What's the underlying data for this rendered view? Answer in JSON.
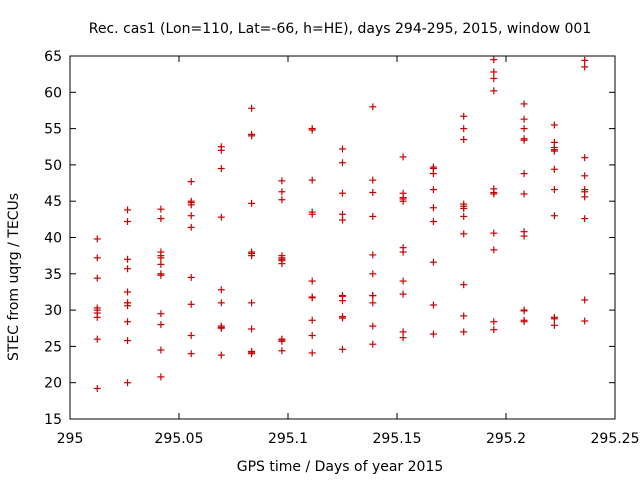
{
  "chart_data": {
    "type": "scatter",
    "title": "Rec. cas1 (Lon=110, Lat=-66, h=HE), days 294-295, 2015, window 001",
    "xlabel": "GPS time / Days of year 2015",
    "ylabel": "STEC from uqrg / TECUs",
    "xlim": [
      295,
      295.25
    ],
    "ylim": [
      15,
      65
    ],
    "xticks": [
      295,
      295.05,
      295.1,
      295.15,
      295.2,
      295.25
    ],
    "xtick_labels": [
      "295",
      "295.05",
      "295.1",
      "295.15",
      "295.2",
      "295.25"
    ],
    "yticks": [
      15,
      20,
      25,
      30,
      35,
      40,
      45,
      50,
      55,
      60,
      65
    ],
    "ytick_labels": [
      "15",
      "20",
      "25",
      "30",
      "35",
      "40",
      "45",
      "50",
      "55",
      "60",
      "65"
    ],
    "grid": false,
    "marker": "plus",
    "marker_color": "#cc0000",
    "series": [
      {
        "x": [
          295.0125,
          295.0125,
          295.0125,
          295.0125,
          295.0125,
          295.0125,
          295.0125,
          295.0125,
          295.0125,
          295.0264,
          295.0264,
          295.0264,
          295.0264,
          295.0264,
          295.0264,
          295.0264,
          295.0264,
          295.0264,
          295.0264,
          295.0264,
          295.0417,
          295.0417,
          295.0417,
          295.0417,
          295.0417,
          295.0417,
          295.0417,
          295.0417,
          295.0417,
          295.0417,
          295.0417,
          295.0417,
          295.0556,
          295.0556,
          295.0556,
          295.0556,
          295.0556,
          295.0556,
          295.0556,
          295.0556,
          295.0556,
          295.0556,
          295.0694,
          295.0694,
          295.0694,
          295.0694,
          295.0694,
          295.0694,
          295.0694,
          295.0694,
          295.0694,
          295.0694,
          295.0833,
          295.0833,
          295.0833,
          295.0833,
          295.0833,
          295.0833,
          295.0833,
          295.0833,
          295.0833,
          295.0833,
          295.0833,
          295.0833,
          295.0972,
          295.0972,
          295.0972,
          295.0972,
          295.0972,
          295.0972,
          295.0972,
          295.0972,
          295.0972,
          295.0972,
          295.0972,
          295.0972,
          295.1111,
          295.1111,
          295.1111,
          295.1111,
          295.1111,
          295.1111,
          295.1111,
          295.1111,
          295.1111,
          295.1111,
          295.1111,
          295.125,
          295.125,
          295.125,
          295.125,
          295.125,
          295.125,
          295.125,
          295.125,
          295.125,
          295.125,
          295.125,
          295.1389,
          295.1389,
          295.1389,
          295.1389,
          295.1389,
          295.1389,
          295.1389,
          295.1389,
          295.1389,
          295.1389,
          295.1389,
          295.1528,
          295.1528,
          295.1528,
          295.1528,
          295.1528,
          295.1528,
          295.1528,
          295.1528,
          295.1528,
          295.1528,
          295.1528,
          295.1667,
          295.1667,
          295.1667,
          295.1667,
          295.1667,
          295.1667,
          295.1667,
          295.1667,
          295.1667,
          295.1806,
          295.1806,
          295.1806,
          295.1806,
          295.1806,
          295.1806,
          295.1806,
          295.1806,
          295.1806,
          295.1806,
          295.1806,
          295.1944,
          295.1944,
          295.1944,
          295.1944,
          295.1944,
          295.1944,
          295.1944,
          295.1944,
          295.1944,
          295.1944,
          295.1944,
          295.2083,
          295.2083,
          295.2083,
          295.2083,
          295.2083,
          295.2083,
          295.2083,
          295.2083,
          295.2083,
          295.2083,
          295.2083,
          295.2083,
          295.2083,
          295.2222,
          295.2222,
          295.2222,
          295.2222,
          295.2222,
          295.2222,
          295.2222,
          295.2222,
          295.2222,
          295.2222,
          295.2222,
          295.2361,
          295.2361,
          295.2361,
          295.2361,
          295.2361,
          295.2361,
          295.2361,
          295.2361,
          295.2361,
          295.2361
        ],
        "y": [
          19.2,
          26.0,
          29.0,
          29.6,
          30.3,
          34.4,
          37.2,
          39.8,
          30.0,
          20.0,
          25.8,
          28.4,
          30.6,
          31.0,
          32.5,
          35.7,
          37.0,
          42.2,
          43.8,
          31.0,
          20.8,
          24.5,
          28.0,
          29.5,
          34.8,
          36.3,
          37.2,
          38.0,
          42.6,
          43.9,
          37.5,
          35.0,
          24.0,
          26.5,
          30.8,
          34.5,
          41.4,
          43.0,
          44.8,
          45.0,
          47.7,
          44.5,
          23.8,
          27.5,
          27.8,
          31.0,
          32.8,
          42.8,
          49.5,
          52.0,
          52.5,
          27.6,
          24.0,
          24.3,
          27.4,
          31.0,
          37.5,
          38.0,
          44.7,
          54.0,
          54.2,
          57.8,
          24.2,
          37.8,
          24.4,
          25.7,
          26.0,
          36.4,
          37.0,
          37.5,
          45.2,
          46.3,
          47.8,
          36.8,
          25.9,
          37.2,
          24.1,
          26.5,
          28.6,
          31.7,
          34.0,
          43.2,
          43.5,
          47.9,
          54.8,
          55.0,
          31.8,
          24.6,
          28.9,
          29.1,
          31.3,
          32.0,
          42.4,
          43.2,
          46.1,
          50.3,
          52.2,
          31.9,
          25.3,
          27.8,
          31.0,
          32.0,
          35.0,
          37.6,
          42.9,
          46.2,
          47.9,
          58.0,
          32.0,
          26.2,
          27.0,
          32.2,
          34.0,
          38.0,
          38.6,
          45.0,
          45.5,
          46.1,
          51.1,
          45.3,
          26.7,
          30.7,
          36.6,
          42.2,
          44.1,
          46.6,
          48.8,
          49.7,
          49.5,
          27.0,
          29.2,
          33.5,
          40.5,
          42.9,
          44.0,
          44.6,
          53.5,
          55.0,
          56.7,
          44.3,
          27.3,
          28.4,
          38.3,
          40.6,
          46.2,
          46.7,
          60.2,
          61.9,
          62.8,
          64.5,
          46.0,
          28.4,
          29.9,
          40.2,
          40.8,
          46.0,
          48.8,
          53.4,
          55.0,
          56.3,
          58.4,
          28.6,
          30.0,
          53.6,
          27.9,
          28.8,
          43.0,
          46.6,
          49.4,
          51.9,
          52.4,
          53.1,
          55.5,
          52.1,
          29.0,
          28.5,
          31.4,
          42.6,
          45.6,
          46.3,
          46.6,
          48.5,
          51.0,
          63.5,
          64.4
        ]
      }
    ]
  }
}
